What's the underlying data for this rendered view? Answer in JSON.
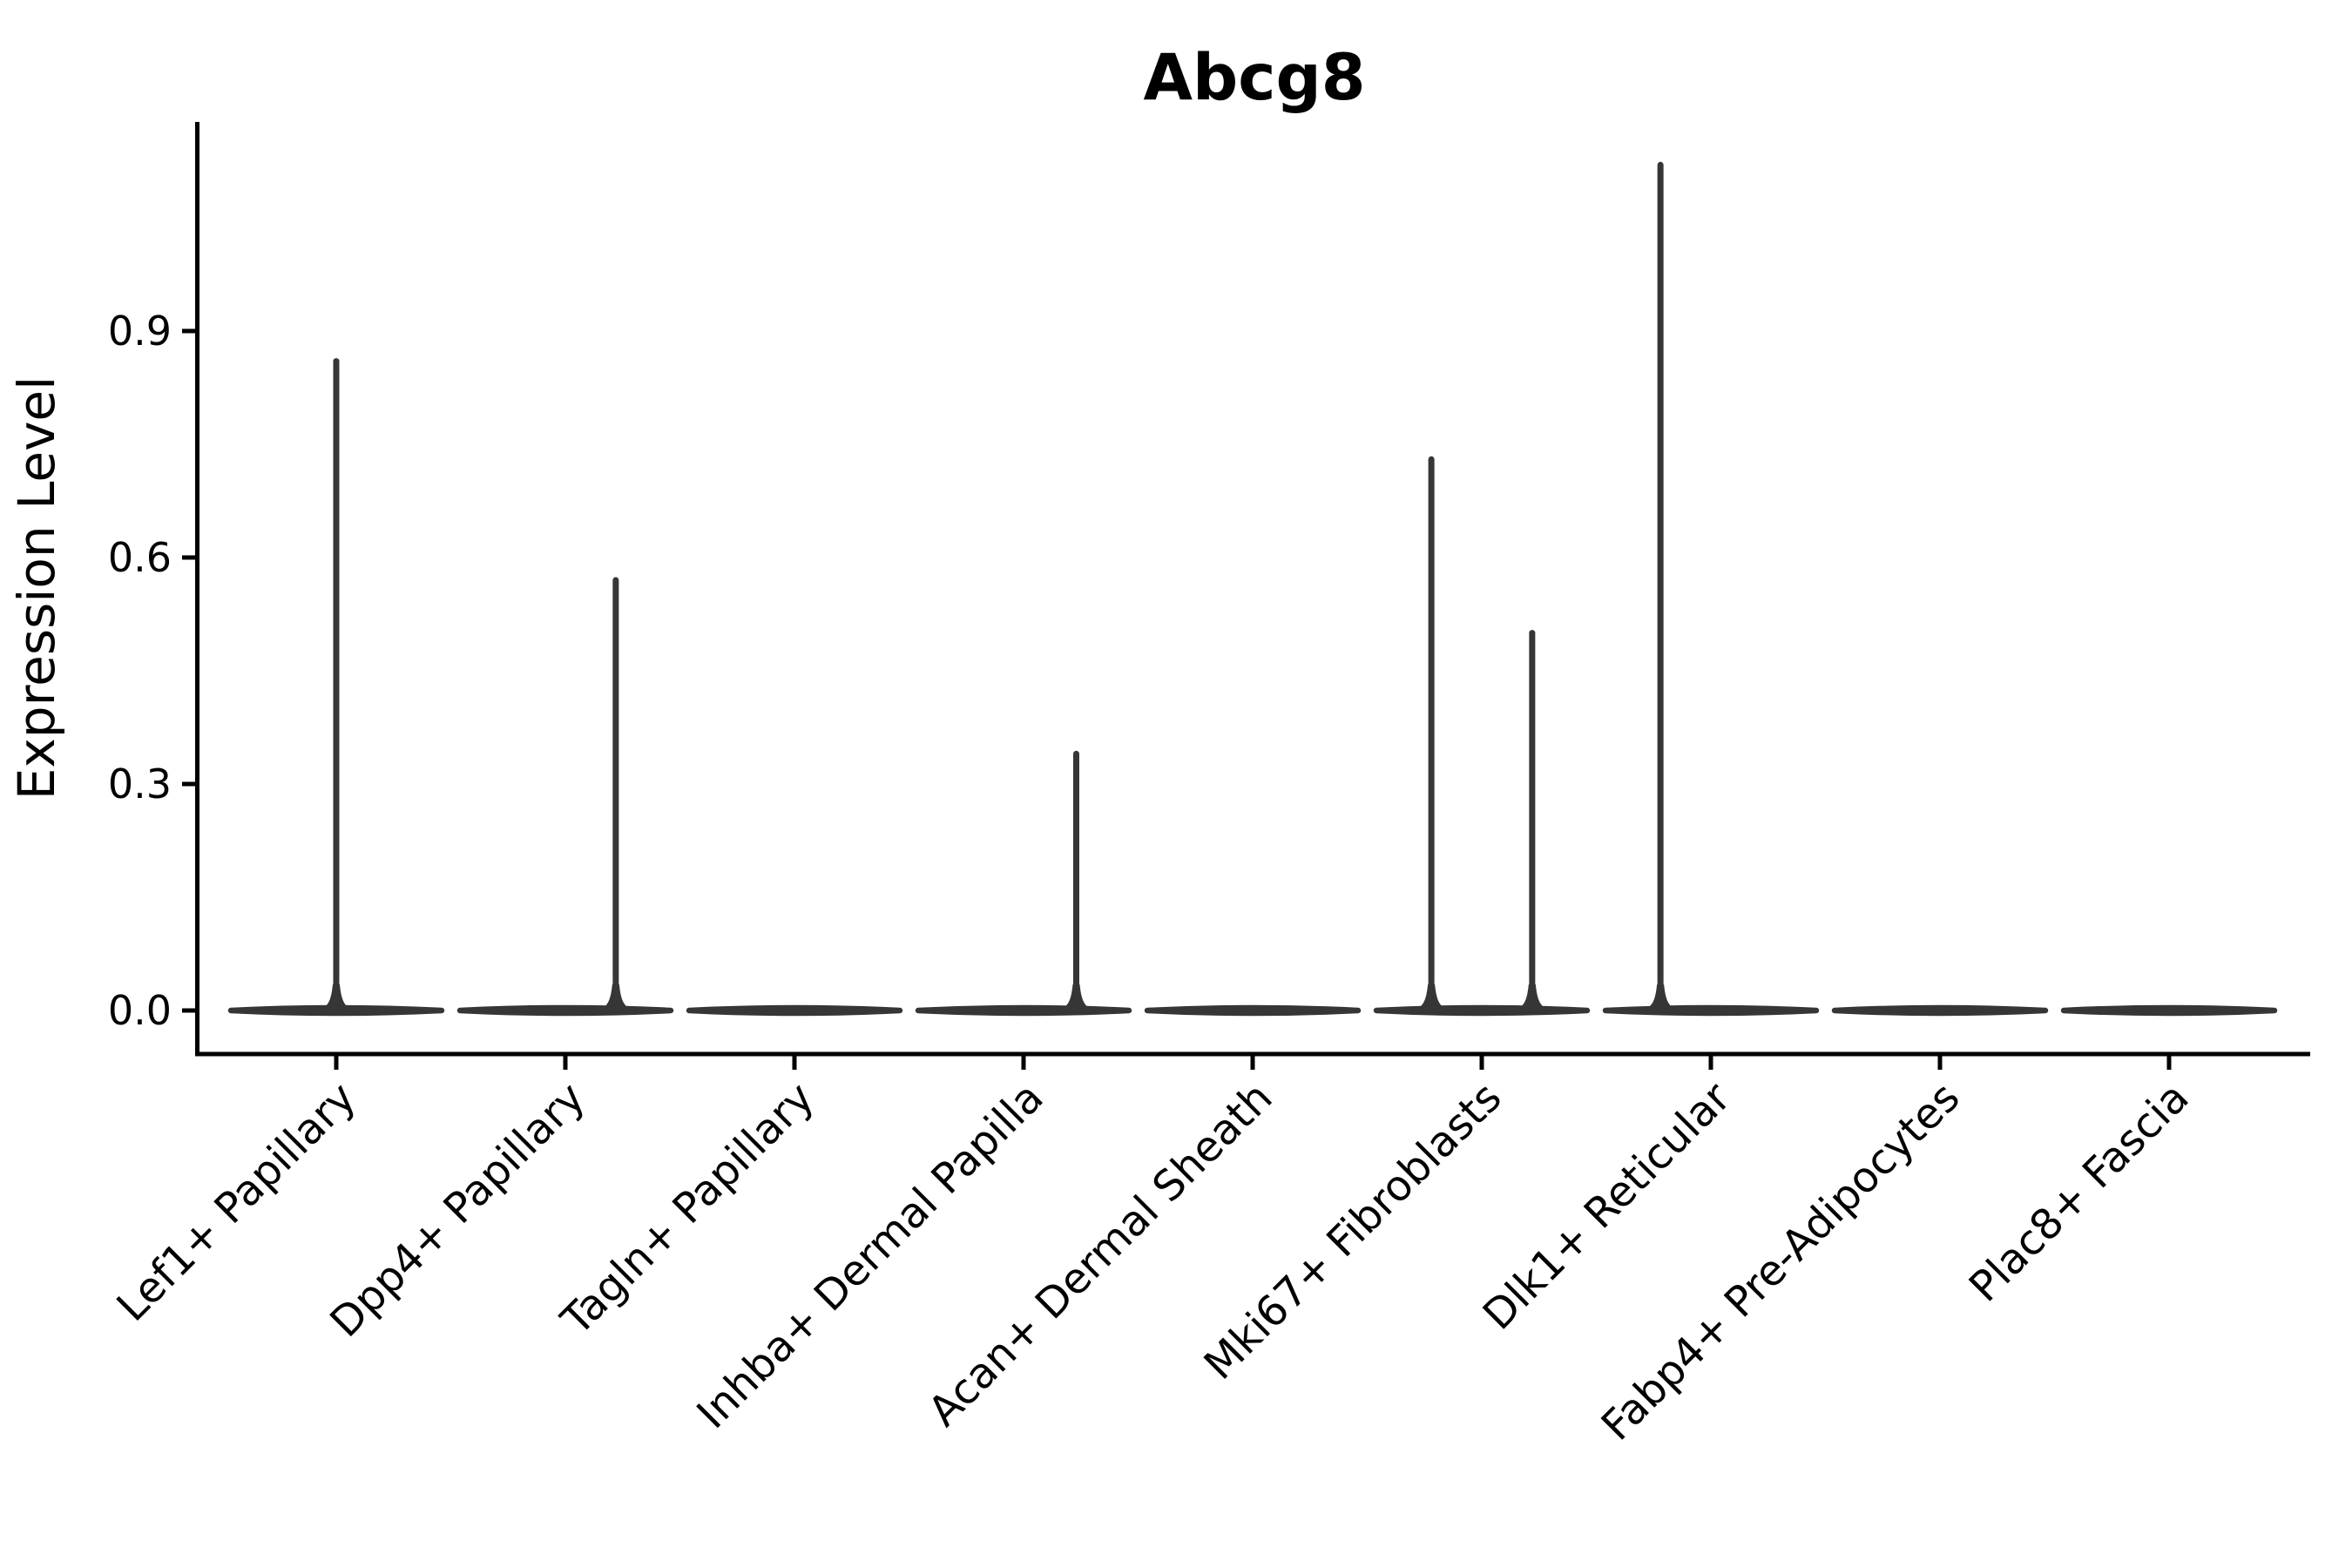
{
  "figure": {
    "background_color": "#ffffff",
    "axis_color": "#000000",
    "violin_color": "#363636",
    "text_color": "#000000"
  },
  "chart_data": {
    "type": "violin",
    "title": "Abcg8",
    "xlabel": "",
    "ylabel": "Expression Level",
    "legend": "none",
    "grid": false,
    "ylim": [
      -0.06,
      1.18
    ],
    "yticks": {
      "values": [
        0.0,
        0.3,
        0.6,
        0.9
      ],
      "labels": [
        "0.0",
        "0.3",
        "0.6",
        "0.9"
      ]
    },
    "x_tick_rotation_deg": 45,
    "categories": [
      "Lef1+ Papillary",
      "Dpp4+ Papillary",
      "Tagln+ Papillary",
      "Inhba+ Dermal Papilla",
      "Acan+ Dermal Sheath",
      "Mki67+ Fibroblasts",
      "Dlk1+ Reticular",
      "Fabp4+ Pre-Adipocytes",
      "Plac8+ Fascia"
    ],
    "violins": [
      {
        "category": "Lef1+ Papillary",
        "body_value": 0.0,
        "body_halfwidth_frac": 0.46,
        "spikes": [
          {
            "offset_frac": 0.0,
            "value": 0.86
          }
        ]
      },
      {
        "category": "Dpp4+ Papillary",
        "body_value": 0.0,
        "body_halfwidth_frac": 0.46,
        "spikes": [
          {
            "offset_frac": 0.22,
            "value": 0.57
          }
        ]
      },
      {
        "category": "Tagln+ Papillary",
        "body_value": 0.0,
        "body_halfwidth_frac": 0.46,
        "spikes": []
      },
      {
        "category": "Inhba+ Dermal Papilla",
        "body_value": 0.0,
        "body_halfwidth_frac": 0.46,
        "spikes": [
          {
            "offset_frac": 0.23,
            "value": 0.34
          }
        ]
      },
      {
        "category": "Acan+ Dermal Sheath",
        "body_value": 0.0,
        "body_halfwidth_frac": 0.46,
        "spikes": []
      },
      {
        "category": "Mki67+ Fibroblasts",
        "body_value": 0.0,
        "body_halfwidth_frac": 0.46,
        "spikes": [
          {
            "offset_frac": -0.22,
            "value": 0.73
          },
          {
            "offset_frac": 0.22,
            "value": 0.5
          }
        ]
      },
      {
        "category": "Dlk1+ Reticular",
        "body_value": 0.0,
        "body_halfwidth_frac": 0.46,
        "spikes": [
          {
            "offset_frac": -0.22,
            "value": 1.12
          }
        ]
      },
      {
        "category": "Fabp4+ Pre-Adipocytes",
        "body_value": 0.0,
        "body_halfwidth_frac": 0.46,
        "spikes": []
      },
      {
        "category": "Plac8+ Fascia",
        "body_value": 0.0,
        "body_halfwidth_frac": 0.46,
        "spikes": []
      }
    ]
  }
}
